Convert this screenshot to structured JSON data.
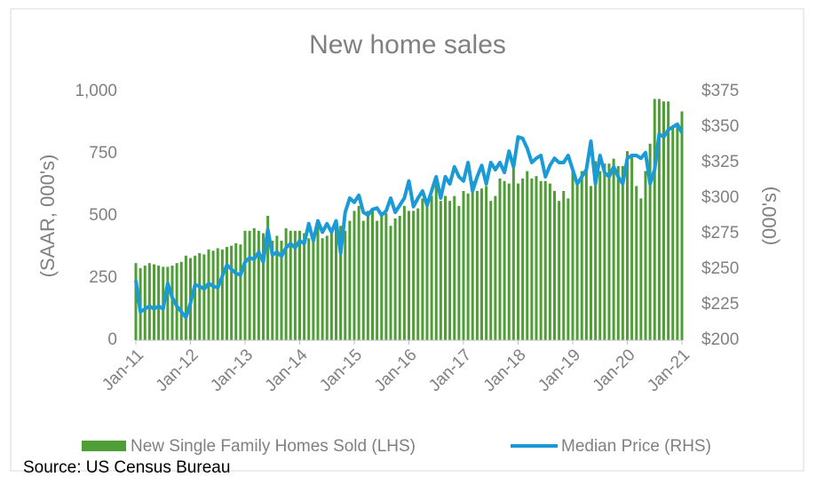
{
  "chart_data": {
    "type": "bar",
    "title": "New home sales",
    "y_label": "(SAAR, 000's)",
    "y2_label": "(000's)",
    "source": "Source: US Census Bureau",
    "categories": [
      "Jan-11",
      null,
      null,
      null,
      null,
      null,
      null,
      null,
      null,
      null,
      null,
      null,
      "Jan-12",
      null,
      null,
      null,
      null,
      null,
      null,
      null,
      null,
      null,
      null,
      null,
      "Jan-13",
      null,
      null,
      null,
      null,
      null,
      null,
      null,
      null,
      null,
      null,
      null,
      "Jan-14",
      null,
      null,
      null,
      null,
      null,
      null,
      null,
      null,
      null,
      null,
      null,
      "Jan-15",
      null,
      null,
      null,
      null,
      null,
      null,
      null,
      null,
      null,
      null,
      null,
      "Jan-16",
      null,
      null,
      null,
      null,
      null,
      null,
      null,
      null,
      null,
      null,
      null,
      "Jan-17",
      null,
      null,
      null,
      null,
      null,
      null,
      null,
      null,
      null,
      null,
      null,
      "Jan-18",
      null,
      null,
      null,
      null,
      null,
      null,
      null,
      null,
      null,
      null,
      null,
      "Jan-19",
      null,
      null,
      null,
      null,
      null,
      null,
      null,
      null,
      null,
      null,
      null,
      "Jan-20",
      null,
      null,
      null,
      null,
      null,
      null,
      null,
      null,
      null,
      null,
      null,
      "Jan-21"
    ],
    "series": [
      {
        "name": "New Single Family Homes Sold (LHS)",
        "color": "#4e9e35",
        "type": "bar",
        "values": [
          310,
          290,
          300,
          310,
          305,
          300,
          295,
          295,
          300,
          310,
          315,
          340,
          330,
          340,
          350,
          345,
          365,
          360,
          370,
          365,
          375,
          380,
          390,
          385,
          440,
          440,
          450,
          440,
          430,
          500,
          400,
          420,
          400,
          450,
          440,
          440,
          440,
          430,
          410,
          430,
          460,
          410,
          420,
          450,
          470,
          460,
          440,
          480,
          520,
          540,
          480,
          520,
          520,
          480,
          500,
          510,
          460,
          490,
          500,
          540,
          520,
          520,
          530,
          570,
          570,
          580,
          630,
          560,
          580,
          560,
          580,
          540,
          600,
          590,
          640,
          600,
          610,
          620,
          560,
          580,
          650,
          640,
          630,
          700,
          630,
          650,
          680,
          650,
          660,
          640,
          640,
          630,
          600,
          560,
          600,
          570,
          690,
          640,
          680,
          680,
          620,
          720,
          680,
          710,
          710,
          730,
          700,
          700,
          760,
          740,
          620,
          570,
          680,
          790,
          970,
          970,
          960,
          960,
          860,
          870,
          920
        ]
      },
      {
        "name": "Median Price (RHS)",
        "color": "#1a9ad6",
        "type": "line",
        "axis": "y2",
        "values": [
          242,
          220,
          222,
          224,
          222,
          224,
          222,
          240,
          230,
          224,
          220,
          216,
          226,
          239,
          238,
          236,
          240,
          238,
          237,
          245,
          253,
          250,
          247,
          246,
          255,
          258,
          257,
          262,
          255,
          278,
          260,
          262,
          259,
          265,
          268,
          265,
          270,
          268,
          282,
          270,
          284,
          276,
          282,
          276,
          284,
          261,
          290,
          300,
          297,
          302,
          290,
          288,
          292,
          293,
          288,
          291,
          300,
          290,
          295,
          300,
          312,
          294,
          300,
          305,
          295,
          305,
          315,
          300,
          315,
          310,
          322,
          315,
          312,
          325,
          305,
          315,
          323,
          310,
          325,
          320,
          325,
          318,
          333,
          322,
          343,
          342,
          335,
          325,
          328,
          330,
          315,
          323,
          328,
          325,
          325,
          330,
          320,
          310,
          315,
          320,
          340,
          310,
          330,
          318,
          315,
          322,
          315,
          310,
          328,
          330,
          330,
          328,
          332,
          310,
          320,
          345,
          343,
          348,
          350,
          352,
          346
        ]
      }
    ],
    "ylim": [
      0,
      1000
    ],
    "yticks": [
      0,
      250,
      500,
      750,
      {
        "value": 1000,
        "label": "1,000"
      }
    ],
    "y2lim": [
      200,
      375
    ],
    "y2ticks": [
      {
        "value": 200,
        "label": "$200"
      },
      {
        "value": 225,
        "label": "$225"
      },
      {
        "value": 250,
        "label": "$250"
      },
      {
        "value": 275,
        "label": "$275"
      },
      {
        "value": 300,
        "label": "$300"
      },
      {
        "value": 325,
        "label": "$325"
      },
      {
        "value": 350,
        "label": "$350"
      },
      {
        "value": 375,
        "label": "$375"
      }
    ]
  }
}
